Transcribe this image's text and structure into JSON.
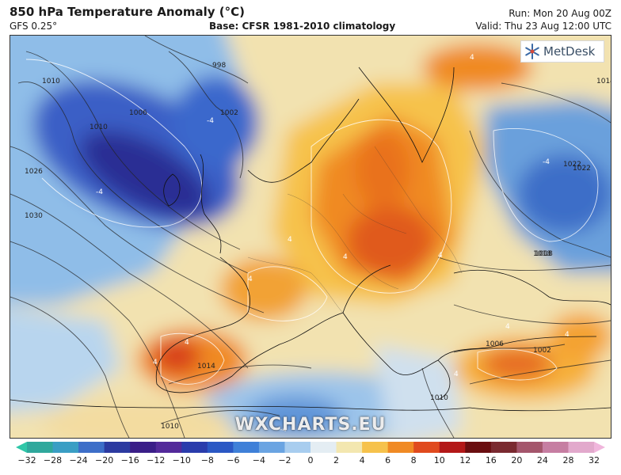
{
  "header": {
    "title": "850 hPa Temperature Anomaly (°C)",
    "model": "GFS 0.25°",
    "base": "Base: CFSR 1981-2010 climatology",
    "run": "Run: Mon 20 Aug 00Z",
    "valid": "Valid: Thu 23 Aug 12:00 UTC"
  },
  "logo": {
    "text": "MetDesk",
    "icon": "snowflake-icon"
  },
  "watermark": "WXCHARTS.EU",
  "isobar_labels": [
    "1010",
    "998",
    "1002",
    "1006",
    "1010",
    "1018",
    "1022",
    "1026",
    "1030",
    "1014",
    "1022",
    "1018",
    "1006",
    "1002",
    "1014",
    "1010",
    "1010"
  ],
  "isotherm_labels": [
    "-4",
    "-4",
    "-4",
    "-4",
    "4",
    "4",
    "4",
    "4",
    "4",
    "4",
    "4",
    "4",
    "4",
    "4"
  ],
  "colorbar": {
    "ticks": [
      "−32",
      "−28",
      "−24",
      "−20",
      "−16",
      "−12",
      "−10",
      "−8",
      "−6",
      "−4",
      "−2",
      "0",
      "2",
      "4",
      "6",
      "8",
      "10",
      "12",
      "16",
      "20",
      "24",
      "28",
      "32"
    ],
    "colors": [
      "#2fa89c",
      "#3a9ec4",
      "#3d6ec8",
      "#2c3aa0",
      "#3a1e88",
      "#532a9a",
      "#2a3cac",
      "#2b58c4",
      "#3f80d8",
      "#6aa4e2",
      "#a8cdef",
      "#e4edf3",
      "#f3e7b0",
      "#f6c24c",
      "#f08a24",
      "#e04a1e",
      "#b31818",
      "#6a0e10",
      "#7a2a30",
      "#a4566c",
      "#c67ea2",
      "#e2a9cc"
    ]
  }
}
